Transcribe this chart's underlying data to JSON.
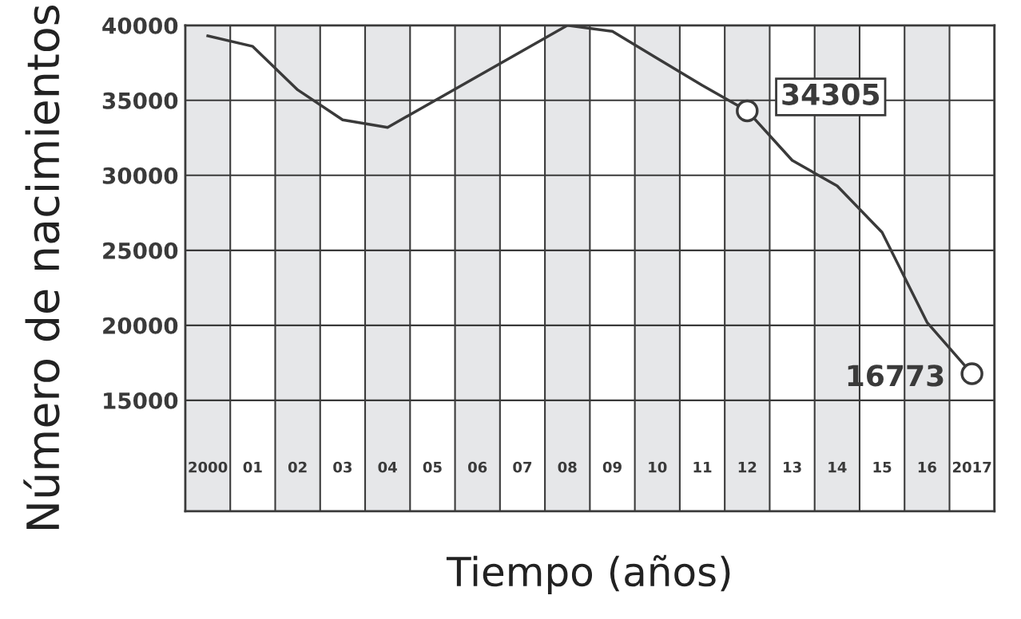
{
  "chart_data": {
    "type": "line",
    "xlabel": "Tiempo (años)",
    "ylabel": "Número de nacimientos",
    "categories": [
      "2000",
      "01",
      "02",
      "03",
      "04",
      "05",
      "06",
      "07",
      "08",
      "09",
      "10",
      "11",
      "12",
      "13",
      "14",
      "15",
      "16",
      "2017"
    ],
    "series": [
      {
        "color": "#3a3a3a",
        "values": [
          39300,
          38600,
          35700,
          33700,
          33200,
          34900,
          36600,
          38300,
          40000,
          39600,
          37800,
          36000,
          34305,
          31000,
          29300,
          26200,
          20200,
          16773
        ]
      }
    ],
    "ylim": [
      7600,
      40000
    ],
    "yticks": [
      15000,
      20000,
      25000,
      30000,
      35000,
      40000
    ],
    "grid": true,
    "marker": "none",
    "line_style": "solid",
    "bands": [
      {
        "axis": "x",
        "from": "2000",
        "to": "2000",
        "color": "#e6e7e9"
      },
      {
        "axis": "x",
        "from": "02",
        "to": "02",
        "color": "#e6e7e9"
      },
      {
        "axis": "x",
        "from": "04",
        "to": "04",
        "color": "#e6e7e9"
      },
      {
        "axis": "x",
        "from": "06",
        "to": "06",
        "color": "#e6e7e9"
      },
      {
        "axis": "x",
        "from": "08",
        "to": "08",
        "color": "#e6e7e9"
      },
      {
        "axis": "x",
        "from": "10",
        "to": "10",
        "color": "#e6e7e9"
      },
      {
        "axis": "x",
        "from": "12",
        "to": "12",
        "color": "#e6e7e9"
      },
      {
        "axis": "x",
        "from": "14",
        "to": "14",
        "color": "#e6e7e9"
      },
      {
        "axis": "x",
        "from": "16",
        "to": "16",
        "color": "#e6e7e9"
      }
    ],
    "annotations": [
      {
        "text": "34305",
        "x": "12",
        "y": 34305
      },
      {
        "text": "16773",
        "x": "2017",
        "y": 16773
      }
    ]
  }
}
